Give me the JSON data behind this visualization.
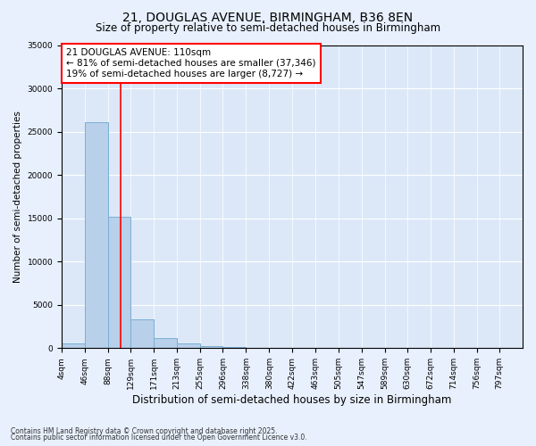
{
  "title": "21, DOUGLAS AVENUE, BIRMINGHAM, B36 8EN",
  "subtitle": "Size of property relative to semi-detached houses in Birmingham",
  "xlabel": "Distribution of semi-detached houses by size in Birmingham",
  "ylabel": "Number of semi-detached properties",
  "footnote1": "Contains HM Land Registry data © Crown copyright and database right 2025.",
  "footnote2": "Contains public sector information licensed under the Open Government Licence v3.0.",
  "annotation_title": "21 DOUGLAS AVENUE: 110sqm",
  "annotation_line1": "← 81% of semi-detached houses are smaller (37,346)",
  "annotation_line2": "19% of semi-detached houses are larger (8,727) →",
  "bar_color": "#b8d0ea",
  "bar_edge_color": "#7bafd4",
  "red_line_x": 110,
  "bin_edges": [
    4,
    46,
    88,
    129,
    171,
    213,
    255,
    296,
    338,
    380,
    422,
    463,
    505,
    547,
    589,
    630,
    672,
    714,
    756,
    797,
    839
  ],
  "bar_heights": [
    500,
    26100,
    15200,
    3300,
    1200,
    500,
    200,
    100,
    80,
    60,
    40,
    30,
    20,
    15,
    10,
    8,
    5,
    4,
    3,
    2
  ],
  "ylim": [
    0,
    35000
  ],
  "yticks": [
    0,
    5000,
    10000,
    15000,
    20000,
    25000,
    30000,
    35000
  ],
  "background_color": "#e8f0fd",
  "plot_bg_color": "#dce8f8",
  "title_fontsize": 10,
  "subtitle_fontsize": 8.5,
  "tick_label_fontsize": 6.5,
  "ylabel_fontsize": 7.5,
  "xlabel_fontsize": 8.5,
  "annotation_fontsize": 7.5,
  "footnote_fontsize": 5.5
}
